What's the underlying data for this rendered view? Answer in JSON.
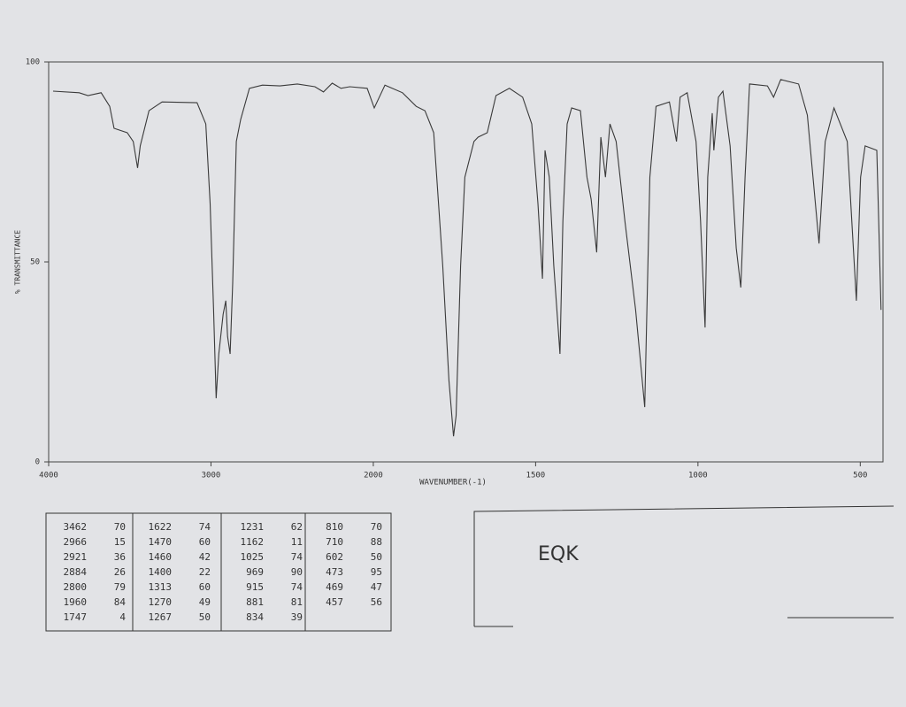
{
  "chart_data": {
    "type": "line",
    "xlabel": "WAVENUMBER(-1)",
    "ylabel": "% TRANSMITTANCE",
    "x": [
      3973,
      3812,
      3758,
      3677,
      3624,
      3597,
      3516,
      3479,
      3452,
      3436,
      3382,
      3301,
      3086,
      3032,
      3005,
      2984,
      2968,
      2952,
      2925,
      2909,
      2898,
      2882,
      2866,
      2844,
      2817,
      2763,
      2683,
      2575,
      2468,
      2360,
      2307,
      2253,
      2199,
      2145,
      2038,
      1997,
      1964,
      1910,
      1868,
      1841,
      1814,
      1786,
      1767,
      1753,
      1745,
      1731,
      1718,
      1690,
      1677,
      1649,
      1622,
      1581,
      1540,
      1512,
      1493,
      1479,
      1471,
      1458,
      1444,
      1425,
      1416,
      1403,
      1389,
      1362,
      1342,
      1329,
      1312,
      1299,
      1285,
      1271,
      1252,
      1225,
      1192,
      1164,
      1148,
      1129,
      1088,
      1066,
      1055,
      1033,
      1006,
      992,
      978,
      970,
      956,
      951,
      937,
      923,
      901,
      882,
      868,
      855,
      841,
      786,
      767,
      745,
      690,
      663,
      627,
      608,
      581,
      540,
      512,
      499,
      485,
      449,
      436
    ],
    "values": [
      92.7,
      92.3,
      91.6,
      92.3,
      88.9,
      83.4,
      82.3,
      80.1,
      73.5,
      79,
      87.8,
      90,
      89.8,
      84.5,
      64.6,
      38,
      15.9,
      27,
      36.9,
      40.3,
      31.4,
      27,
      44.7,
      80.1,
      85.6,
      93.4,
      94.2,
      94,
      94.5,
      93.8,
      92.5,
      94.7,
      93.4,
      93.8,
      93.4,
      88.5,
      94.2,
      92.3,
      88.9,
      87.8,
      82.3,
      49.1,
      20.4,
      6.4,
      11.5,
      49.1,
      71.2,
      80.1,
      81.2,
      82.3,
      91.6,
      93.4,
      91.2,
      84.5,
      64.6,
      45.8,
      77.9,
      71.2,
      49.1,
      27,
      60.2,
      84.5,
      88.5,
      87.8,
      71.2,
      65.7,
      52.4,
      81.2,
      71.2,
      84.5,
      80.1,
      60.2,
      38,
      13.7,
      71.2,
      88.9,
      90,
      80.1,
      91.2,
      92.3,
      80.1,
      60.2,
      33.6,
      71.2,
      87.2,
      77.9,
      91.2,
      92.7,
      79,
      53.5,
      43.6,
      71.2,
      94.5,
      94,
      91.2,
      95.6,
      94.5,
      86.7,
      54.6,
      80.1,
      88.5,
      80.1,
      40.3,
      71.2,
      79,
      77.9,
      38
    ],
    "color": "#3a3a3a",
    "xlim": [
      4000,
      430
    ],
    "xticks": [
      4000,
      3000,
      2000,
      1500,
      1000,
      500
    ],
    "ylim": [
      0,
      100
    ],
    "yticks": [
      0,
      50,
      100
    ]
  },
  "table": {
    "rows": [
      [
        "3462",
        "70",
        "1622",
        "74",
        "1231",
        "62",
        "810",
        "70"
      ],
      [
        "2966",
        "15",
        "1470",
        "60",
        "1162",
        "11",
        "710",
        "88"
      ],
      [
        "2921",
        "36",
        "1460",
        "42",
        "1025",
        "74",
        "602",
        "50"
      ],
      [
        "2884",
        "26",
        "1400",
        "22",
        "969",
        "90",
        "473",
        "95"
      ],
      [
        "2800",
        "79",
        "1313",
        "60",
        "915",
        "74",
        "469",
        "47"
      ],
      [
        "1960",
        "84",
        "1270",
        "49",
        "881",
        "81",
        "457",
        "56"
      ],
      [
        "1747",
        "4",
        "1267",
        "50",
        "834",
        "39"
      ]
    ]
  },
  "label": {
    "text": "EQK"
  }
}
